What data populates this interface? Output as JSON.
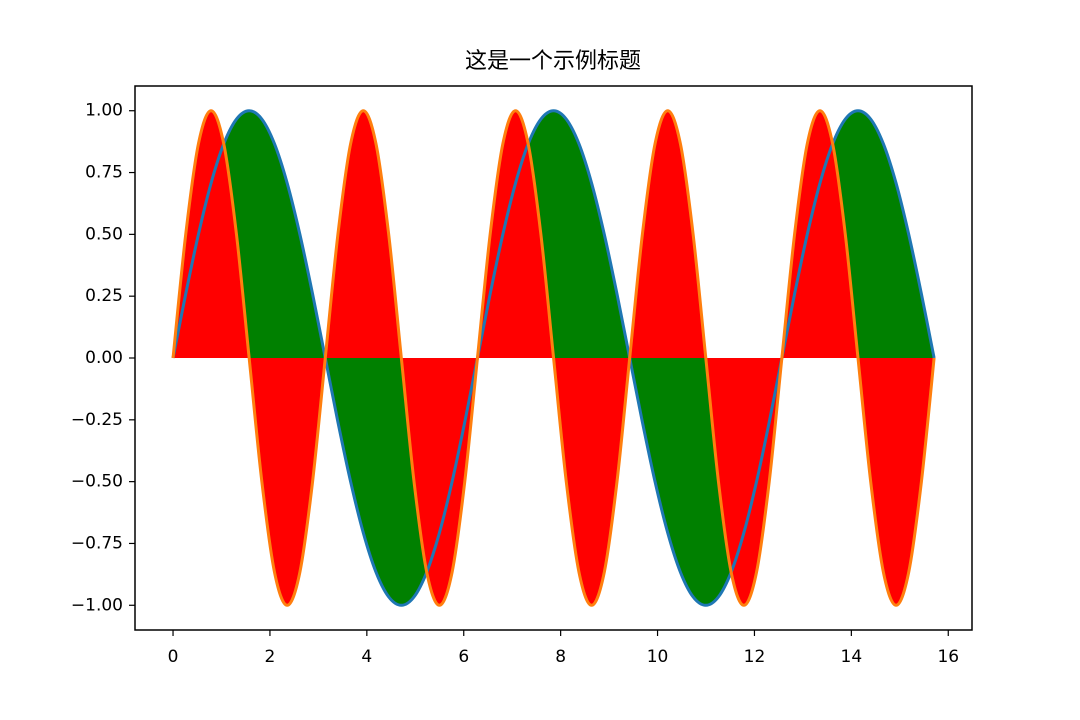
{
  "chart_data": {
    "type": "line",
    "title": "这是一个示例标题",
    "x": [
      0,
      0.262,
      0.524,
      0.785,
      1.047,
      1.309,
      1.571,
      1.833,
      2.094,
      2.356,
      2.618,
      2.88,
      3.142,
      3.403,
      3.665,
      3.927,
      4.189,
      4.451,
      4.712,
      4.974,
      5.236,
      5.498,
      5.76,
      6.021,
      6.283,
      6.545,
      6.807,
      7.069,
      7.33,
      7.592,
      7.854,
      8.116,
      8.378,
      8.639,
      8.901,
      9.163,
      9.425,
      9.687,
      9.948,
      10.21,
      10.472,
      10.734,
      10.996,
      11.257,
      11.519,
      11.781,
      12.043,
      12.305,
      12.566,
      12.828,
      13.09,
      13.352,
      13.614,
      13.875,
      14.137,
      14.399,
      14.661,
      14.923,
      15.184,
      15.446,
      15.708
    ],
    "series": [
      {
        "color": "#1f77b4",
        "fill": "#008000",
        "values": [
          0,
          0.259,
          0.5,
          0.707,
          0.866,
          0.966,
          1,
          0.966,
          0.866,
          0.707,
          0.5,
          0.259,
          0,
          -0.259,
          -0.5,
          -0.707,
          -0.866,
          -0.966,
          -1,
          -0.966,
          -0.866,
          -0.707,
          -0.5,
          -0.259,
          0,
          0.259,
          0.5,
          0.707,
          0.866,
          0.966,
          1,
          0.966,
          0.866,
          0.707,
          0.5,
          0.259,
          0,
          -0.259,
          -0.5,
          -0.707,
          -0.866,
          -0.966,
          -1,
          -0.966,
          -0.866,
          -0.707,
          -0.5,
          -0.259,
          0,
          0.259,
          0.5,
          0.707,
          0.866,
          0.966,
          1,
          0.966,
          0.866,
          0.707,
          0.5,
          0.259,
          0
        ]
      },
      {
        "color": "#ff7f0e",
        "fill": "#ff0000",
        "values": [
          0,
          0.5,
          0.866,
          1,
          0.866,
          0.5,
          0,
          -0.5,
          -0.866,
          -1,
          -0.866,
          -0.5,
          0,
          0.5,
          0.866,
          1,
          0.866,
          0.5,
          0,
          -0.5,
          -0.866,
          -1,
          -0.866,
          -0.5,
          0,
          0.5,
          0.866,
          1,
          0.866,
          0.5,
          0,
          -0.5,
          -0.866,
          -1,
          -0.866,
          -0.5,
          0,
          0.5,
          0.866,
          1,
          0.866,
          0.5,
          0,
          -0.5,
          -0.866,
          -1,
          -0.866,
          -0.5,
          0,
          0.5,
          0.866,
          1,
          0.866,
          0.5,
          0,
          -0.5,
          -0.866,
          -1,
          -0.866,
          -0.5,
          0
        ]
      }
    ],
    "xlim": [
      -0.785,
      16.49
    ],
    "xticks": [
      0,
      2,
      4,
      6,
      8,
      10,
      12,
      14,
      16
    ],
    "ylim": [
      -1.1,
      1.1
    ],
    "yticks": [
      {
        "value": -1,
        "label": "−1.00"
      },
      {
        "value": -0.75,
        "label": "−0.75"
      },
      {
        "value": -0.5,
        "label": "−0.50"
      },
      {
        "value": -0.25,
        "label": "−0.25"
      },
      {
        "value": 0,
        "label": "0.00"
      },
      {
        "value": 0.25,
        "label": "0.25"
      },
      {
        "value": 0.5,
        "label": "0.50"
      },
      {
        "value": 0.75,
        "label": "0.75"
      },
      {
        "value": 1,
        "label": "1.00"
      }
    ],
    "grid": false
  }
}
